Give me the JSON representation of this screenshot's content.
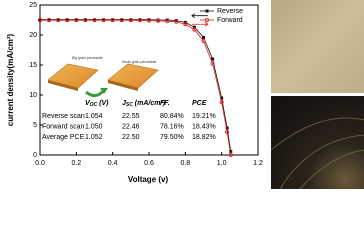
{
  "chart_data": {
    "type": "line",
    "x_label": "Voltage (v)",
    "y_label": "current density(mA/cm²)",
    "x": [
      0,
      0.05,
      0.1,
      0.15,
      0.2,
      0.25,
      0.3,
      0.35,
      0.4,
      0.45,
      0.5,
      0.55,
      0.6,
      0.65,
      0.7,
      0.75,
      0.8,
      0.85,
      0.9,
      0.95,
      1.0,
      1.03,
      1.05
    ],
    "series": [
      {
        "name": "Reverse",
        "color": "#111111",
        "marker": "square",
        "values": [
          22.55,
          22.55,
          22.55,
          22.55,
          22.55,
          22.55,
          22.55,
          22.55,
          22.55,
          22.55,
          22.55,
          22.55,
          22.55,
          22.5,
          22.5,
          22.4,
          22.1,
          21.3,
          19.6,
          16.0,
          9.5,
          4.5,
          0.6
        ]
      },
      {
        "name": "Forward",
        "color": "#e0201e",
        "marker": "circle",
        "values": [
          22.46,
          22.46,
          22.46,
          22.46,
          22.46,
          22.46,
          22.46,
          22.46,
          22.46,
          22.46,
          22.45,
          22.45,
          22.4,
          22.35,
          22.3,
          22.2,
          21.8,
          20.9,
          19.0,
          15.2,
          8.8,
          3.8,
          0
        ]
      }
    ],
    "xlim": [
      0,
      1.2
    ],
    "xticks": [
      {
        "value": 0,
        "label": "0.0"
      },
      {
        "value": 0.2,
        "label": "0.2"
      },
      {
        "value": 0.4,
        "label": "0.4"
      },
      {
        "value": 0.6,
        "label": "0.6"
      },
      {
        "value": 0.8,
        "label": "0.8"
      },
      {
        "value": 1.0,
        "label": "1.0"
      },
      {
        "value": 1.2,
        "label": "1.2"
      }
    ],
    "ylim": [
      0,
      25
    ],
    "yticks": [
      0,
      5,
      10,
      15,
      20,
      25
    ],
    "legend": "top-right",
    "inset_labels": [
      "Big grain perovskite",
      "Small grain perovskite"
    ],
    "table": {
      "header": [
        [
          "V",
          "OC",
          " (V)"
        ],
        [
          "J",
          "SC",
          " (mA/cm²)"
        ],
        [
          "FF."
        ],
        [
          "PCE"
        ]
      ],
      "rows": [
        [
          "Reverse scan",
          "1.054",
          "22.55",
          "80.84%",
          "19.21%"
        ],
        [
          "Forward scan",
          "1.050",
          "22.46",
          "78.16%",
          "18.43%"
        ],
        [
          "Average PCE",
          "1.052",
          "22.50",
          "79.50%",
          "18.82%"
        ]
      ]
    }
  }
}
